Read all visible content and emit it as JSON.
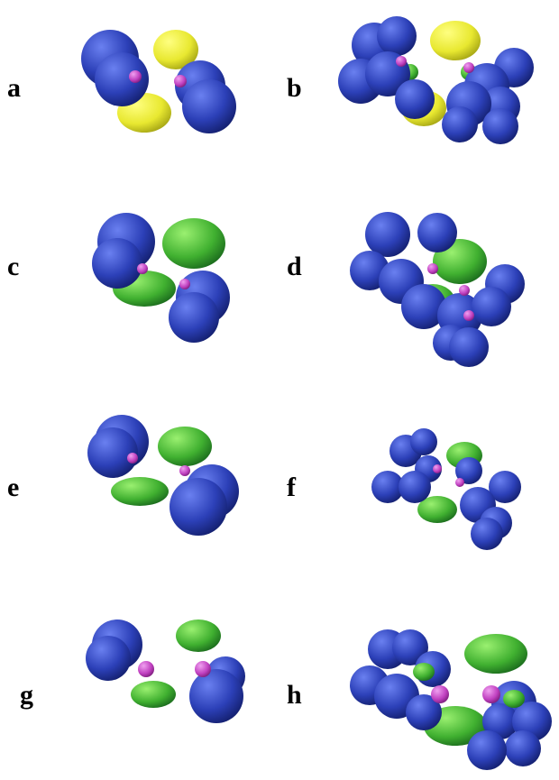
{
  "panels": [
    {
      "label": "a"
    },
    {
      "label": "b"
    },
    {
      "label": "c"
    },
    {
      "label": "d"
    },
    {
      "label": "e"
    },
    {
      "label": "f"
    },
    {
      "label": "g"
    },
    {
      "label": "h"
    }
  ]
}
